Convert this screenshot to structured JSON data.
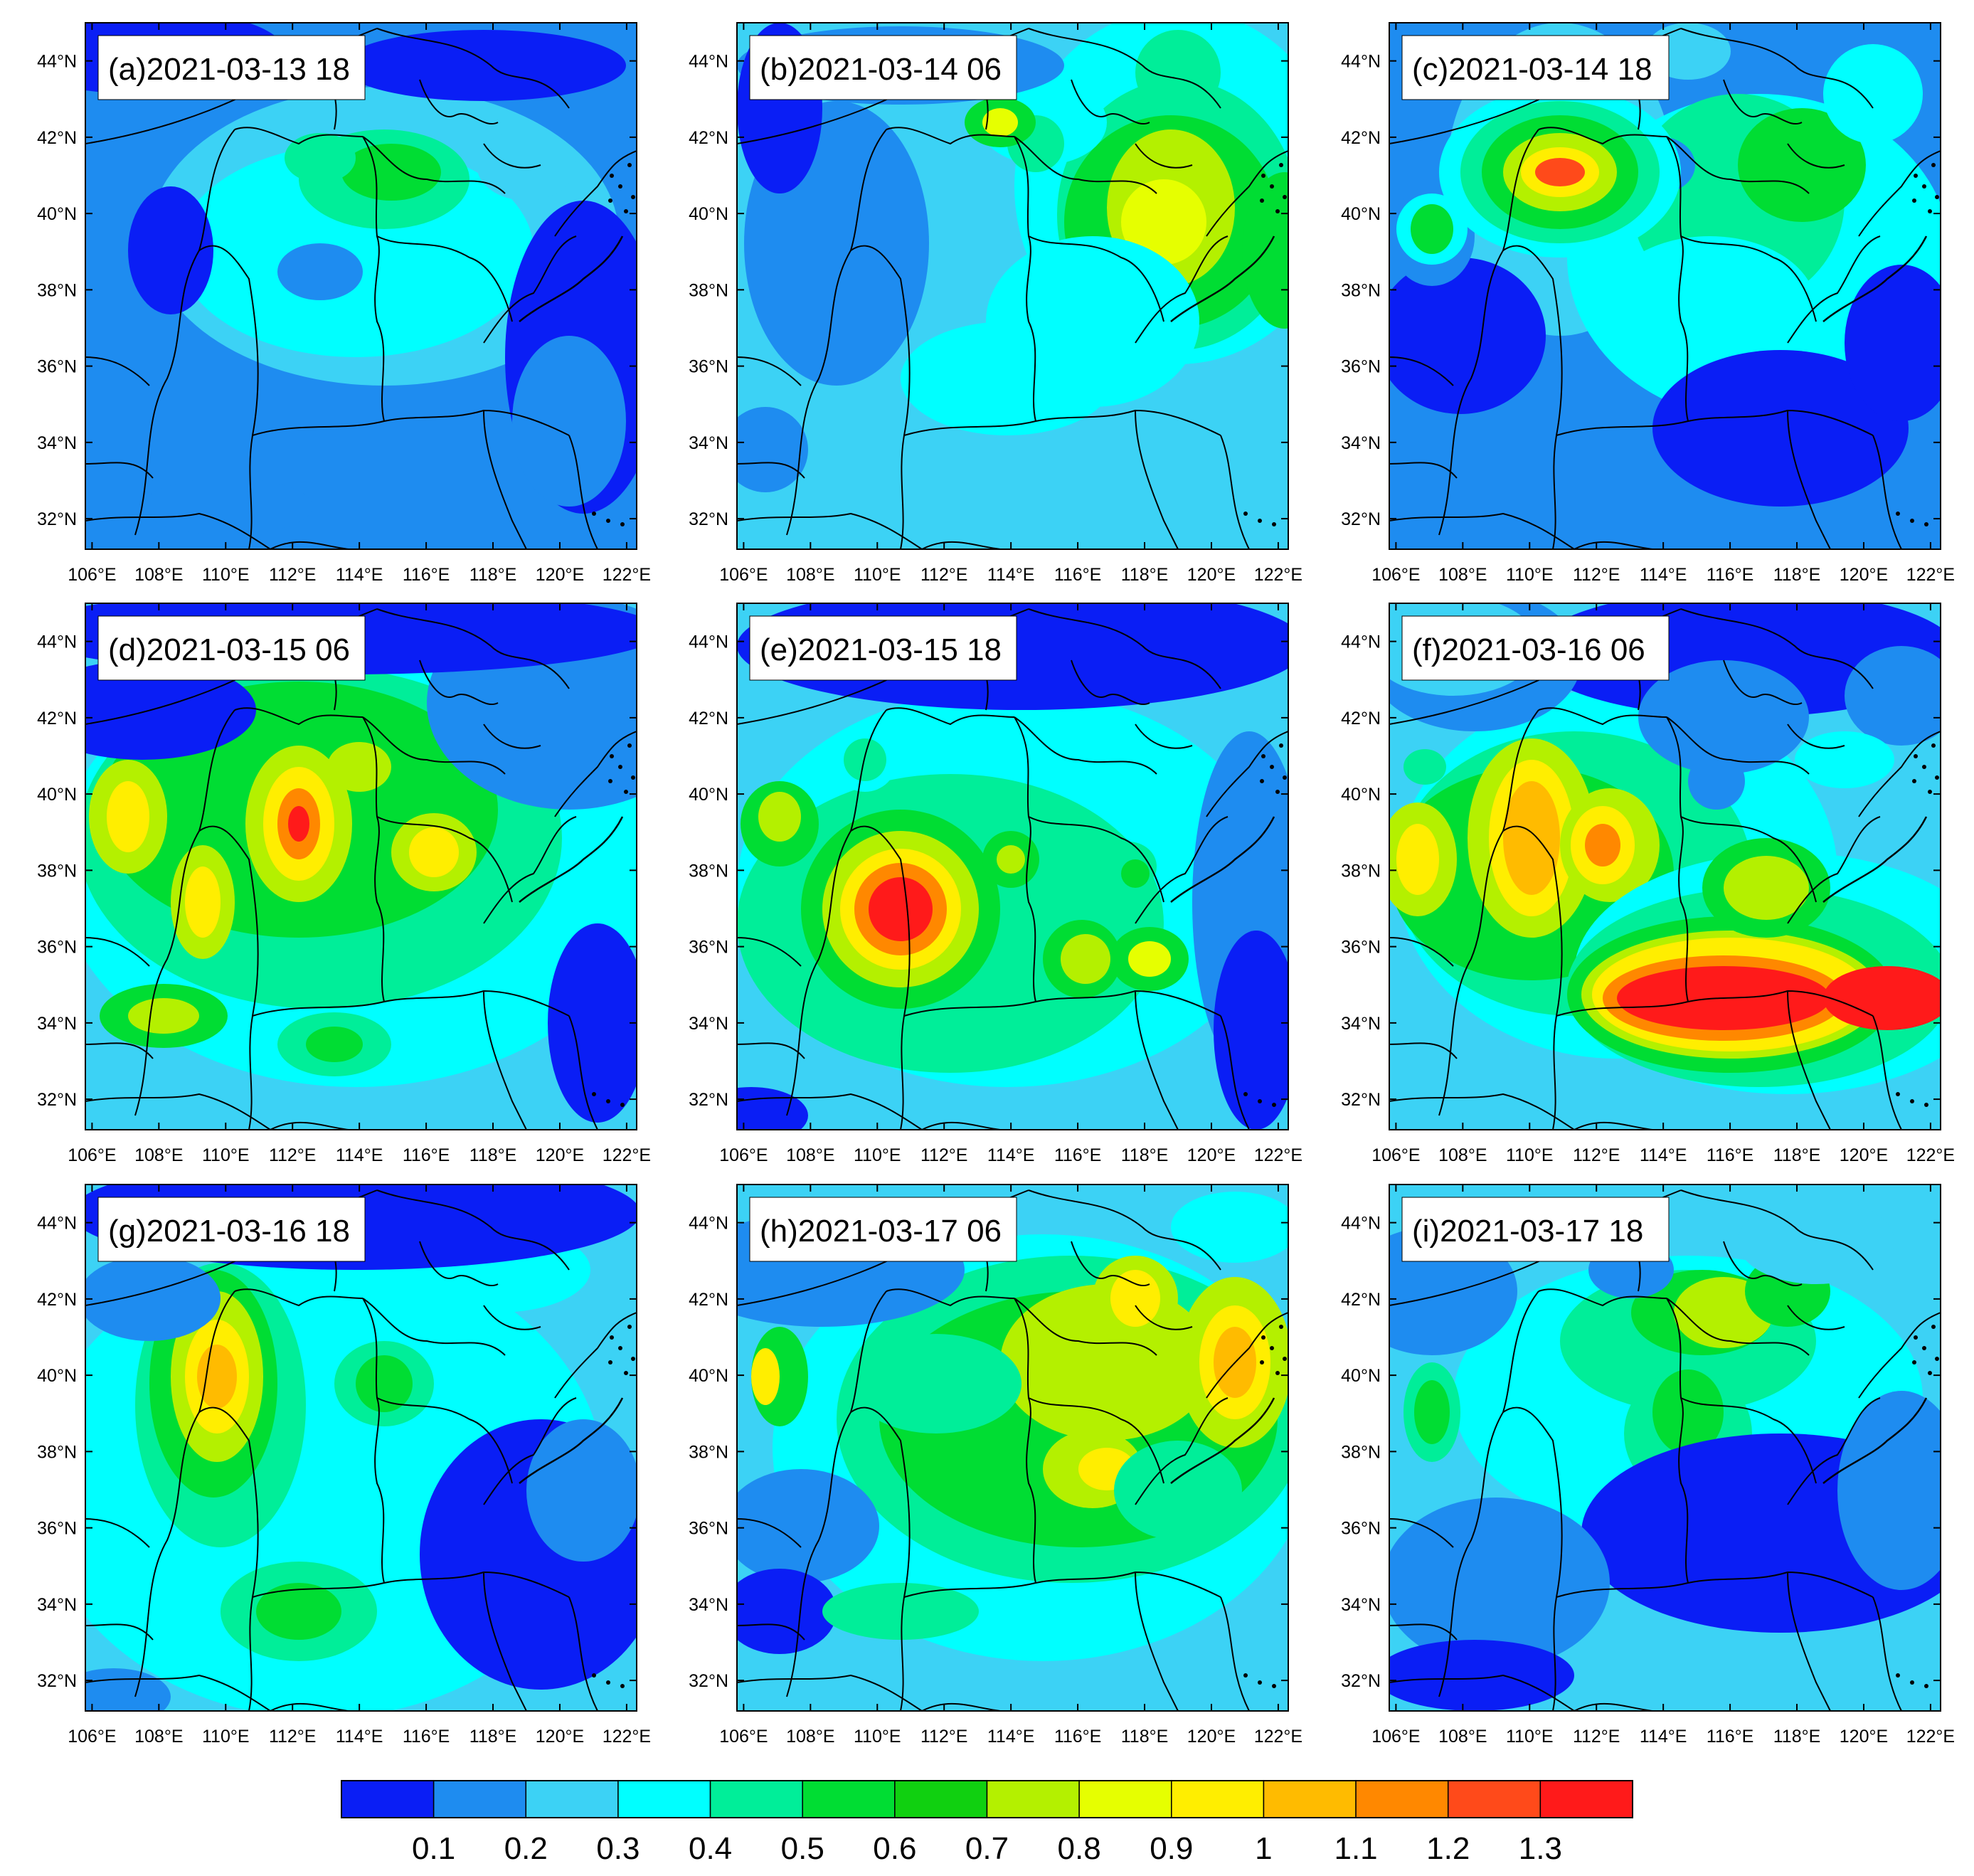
{
  "figure": {
    "panels": [
      {
        "label": "(a)2021-03-13 18"
      },
      {
        "label": "(b)2021-03-14 06"
      },
      {
        "label": "(c)2021-03-14 18"
      },
      {
        "label": "(d)2021-03-15 06"
      },
      {
        "label": "(e)2021-03-15 18"
      },
      {
        "label": "(f)2021-03-16 06"
      },
      {
        "label": "(g)2021-03-16 18"
      },
      {
        "label": "(h)2021-03-17 06"
      },
      {
        "label": "(i)2021-03-17 18"
      }
    ],
    "lon_ticks": [
      "106°E",
      "108°E",
      "110°E",
      "112°E",
      "114°E",
      "116°E",
      "118°E",
      "120°E",
      "122°E"
    ],
    "lat_ticks": [
      "44°N",
      "42°N",
      "40°N",
      "38°N",
      "36°N",
      "34°N",
      "32°N"
    ],
    "colorbar": {
      "colors": [
        "#0a1ef5",
        "#1e8cf0",
        "#3cd2f5",
        "#00ffff",
        "#00ee99",
        "#00dd33",
        "#10d010",
        "#b4f000",
        "#e6ff00",
        "#ffee00",
        "#ffbb00",
        "#ff8800",
        "#ff4a1a",
        "#ff1a1a"
      ],
      "labels": [
        "0.1",
        "0.2",
        "0.3",
        "0.4",
        "0.5",
        "0.6",
        "0.7",
        "0.8",
        "0.9",
        "1",
        "1.1",
        "1.2",
        "1.3"
      ]
    }
  }
}
